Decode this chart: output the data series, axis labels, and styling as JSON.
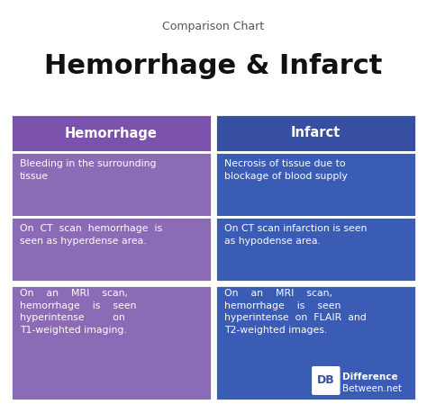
{
  "title_small": "Comparison Chart",
  "title_large_part1": "Hemorrhage",
  "title_large_ampersand": " & ",
  "title_large_part2": "Infarct",
  "header_left": "Hemorrhage",
  "header_right": "Infarct",
  "rows": [
    {
      "left": "Bleeding in the surrounding\ntissue",
      "right": "Necrosis of tissue due to\nblockage of blood supply"
    },
    {
      "left": "On  CT  scan  hemorrhage  is\nseen as hyperdense area.",
      "right": "On CT scan infarction is seen\nas hypodense area."
    },
    {
      "left": "On    an    MRI    scan,\nhemorrhage    is    seen\nhyperintense         on\nT1-weighted imaging.",
      "right": "On    an    MRI    scan,\nhemorrhage    is    seen\nhyperintense  on  FLAIR  and\nT2-weighted images."
    }
  ],
  "color_purple_header": "#7B52AB",
  "color_blue_header": "#364FA0",
  "color_purple_row": "#8B6BB5",
  "color_blue_row": "#3A5CB5",
  "color_bg": "#FFFFFF",
  "color_title_small": "#555555",
  "color_title_large": "#111111"
}
